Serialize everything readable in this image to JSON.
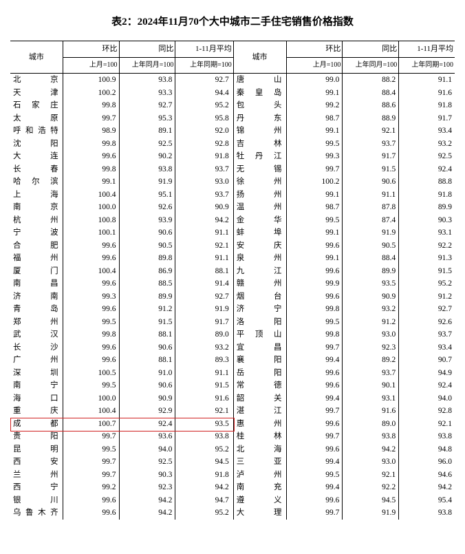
{
  "title": "表2：2024年11月70个大中城市二手住宅销售价格指数",
  "header": {
    "city": "城市",
    "mom": "环比",
    "yoy": "同比",
    "avg": "1-11月平均",
    "mom_sub": "上月=100",
    "yoy_sub": "上年同月=100",
    "avg_sub": "上年同期=100"
  },
  "highlight_left_index": 27,
  "highlight_color": "#d02020",
  "colors": {
    "bg": "#ffffff",
    "text": "#000000",
    "border": "#000000"
  },
  "left": [
    {
      "city": "北京",
      "v": [
        100.9,
        93.8,
        92.7
      ]
    },
    {
      "city": "天津",
      "v": [
        100.2,
        93.3,
        94.4
      ]
    },
    {
      "city": "石家庄",
      "v": [
        99.8,
        92.7,
        95.2
      ]
    },
    {
      "city": "太原",
      "v": [
        99.7,
        95.3,
        95.8
      ]
    },
    {
      "city": "呼和浩特",
      "v": [
        98.9,
        89.1,
        92.0
      ]
    },
    {
      "city": "沈阳",
      "v": [
        99.8,
        92.5,
        92.8
      ]
    },
    {
      "city": "大连",
      "v": [
        99.6,
        90.2,
        91.8
      ]
    },
    {
      "city": "长春",
      "v": [
        99.8,
        93.8,
        93.7
      ]
    },
    {
      "city": "哈尔滨",
      "v": [
        99.1,
        91.9,
        93.0
      ]
    },
    {
      "city": "上海",
      "v": [
        100.4,
        95.1,
        93.7
      ]
    },
    {
      "city": "南京",
      "v": [
        100.0,
        92.6,
        90.9
      ]
    },
    {
      "city": "杭州",
      "v": [
        100.8,
        93.9,
        94.2
      ]
    },
    {
      "city": "宁波",
      "v": [
        100.1,
        90.6,
        91.1
      ]
    },
    {
      "city": "合肥",
      "v": [
        99.6,
        90.5,
        92.1
      ]
    },
    {
      "city": "福州",
      "v": [
        99.6,
        89.8,
        91.1
      ]
    },
    {
      "city": "厦门",
      "v": [
        100.4,
        86.9,
        88.1
      ]
    },
    {
      "city": "南昌",
      "v": [
        99.6,
        88.5,
        91.4
      ]
    },
    {
      "city": "济南",
      "v": [
        99.3,
        89.9,
        92.7
      ]
    },
    {
      "city": "青岛",
      "v": [
        99.6,
        91.2,
        91.9
      ]
    },
    {
      "city": "郑州",
      "v": [
        99.5,
        91.5,
        91.7
      ]
    },
    {
      "city": "武汉",
      "v": [
        99.8,
        88.1,
        89.0
      ]
    },
    {
      "city": "长沙",
      "v": [
        99.6,
        90.6,
        93.2
      ]
    },
    {
      "city": "广州",
      "v": [
        99.6,
        88.1,
        89.3
      ]
    },
    {
      "city": "深圳",
      "v": [
        100.5,
        91.0,
        91.1
      ]
    },
    {
      "city": "南宁",
      "v": [
        99.5,
        90.6,
        91.5
      ]
    },
    {
      "city": "海口",
      "v": [
        100.0,
        90.9,
        91.6
      ]
    },
    {
      "city": "重庆",
      "v": [
        100.4,
        92.9,
        92.1
      ]
    },
    {
      "city": "成都",
      "v": [
        100.7,
        92.4,
        93.5
      ]
    },
    {
      "city": "贵阳",
      "v": [
        99.7,
        93.6,
        93.8
      ]
    },
    {
      "city": "昆明",
      "v": [
        99.5,
        94.0,
        95.2
      ]
    },
    {
      "city": "西安",
      "v": [
        99.7,
        92.5,
        94.5
      ]
    },
    {
      "city": "兰州",
      "v": [
        99.7,
        90.3,
        91.8
      ]
    },
    {
      "city": "西宁",
      "v": [
        99.2,
        92.3,
        94.2
      ]
    },
    {
      "city": "银川",
      "v": [
        99.6,
        94.2,
        94.7
      ]
    },
    {
      "city": "乌鲁木齐",
      "v": [
        99.6,
        94.2,
        95.2
      ]
    }
  ],
  "right": [
    {
      "city": "唐山",
      "v": [
        99.0,
        88.2,
        91.1
      ]
    },
    {
      "city": "秦皇岛",
      "v": [
        99.1,
        88.4,
        91.6
      ]
    },
    {
      "city": "包头",
      "v": [
        99.2,
        88.6,
        91.8
      ]
    },
    {
      "city": "丹东",
      "v": [
        98.7,
        88.9,
        91.7
      ]
    },
    {
      "city": "锦州",
      "v": [
        99.1,
        92.1,
        93.4
      ]
    },
    {
      "city": "吉林",
      "v": [
        99.5,
        93.7,
        93.2
      ]
    },
    {
      "city": "牡丹江",
      "v": [
        99.3,
        91.7,
        92.5
      ]
    },
    {
      "city": "无锡",
      "v": [
        99.7,
        91.5,
        92.4
      ]
    },
    {
      "city": "徐州",
      "v": [
        100.2,
        90.6,
        88.8
      ]
    },
    {
      "city": "扬州",
      "v": [
        99.1,
        91.1,
        91.8
      ]
    },
    {
      "city": "温州",
      "v": [
        98.7,
        87.8,
        89.9
      ]
    },
    {
      "city": "金华",
      "v": [
        99.5,
        87.4,
        90.3
      ]
    },
    {
      "city": "蚌埠",
      "v": [
        99.1,
        91.9,
        93.1
      ]
    },
    {
      "city": "安庆",
      "v": [
        99.6,
        90.5,
        92.2
      ]
    },
    {
      "city": "泉州",
      "v": [
        99.1,
        88.4,
        91.3
      ]
    },
    {
      "city": "九江",
      "v": [
        99.6,
        89.9,
        91.5
      ]
    },
    {
      "city": "赣州",
      "v": [
        99.9,
        93.5,
        95.2
      ]
    },
    {
      "city": "烟台",
      "v": [
        99.6,
        90.9,
        91.2
      ]
    },
    {
      "city": "济宁",
      "v": [
        99.8,
        93.2,
        92.7
      ]
    },
    {
      "city": "洛阳",
      "v": [
        99.5,
        91.2,
        92.6
      ]
    },
    {
      "city": "平顶山",
      "v": [
        99.8,
        93.0,
        93.7
      ]
    },
    {
      "city": "宜昌",
      "v": [
        99.7,
        92.3,
        93.4
      ]
    },
    {
      "city": "襄阳",
      "v": [
        99.4,
        89.2,
        90.7
      ]
    },
    {
      "city": "岳阳",
      "v": [
        99.6,
        93.7,
        94.9
      ]
    },
    {
      "city": "常德",
      "v": [
        99.6,
        90.1,
        92.4
      ]
    },
    {
      "city": "韶关",
      "v": [
        99.4,
        93.1,
        94.0
      ]
    },
    {
      "city": "湛江",
      "v": [
        99.7,
        91.6,
        92.8
      ]
    },
    {
      "city": "惠州",
      "v": [
        99.6,
        89.0,
        92.1
      ]
    },
    {
      "city": "桂林",
      "v": [
        99.7,
        93.8,
        93.8
      ]
    },
    {
      "city": "北海",
      "v": [
        99.6,
        94.2,
        94.8
      ]
    },
    {
      "city": "三亚",
      "v": [
        99.4,
        93.0,
        96.0
      ]
    },
    {
      "city": "泸州",
      "v": [
        99.5,
        92.1,
        94.6
      ]
    },
    {
      "city": "南充",
      "v": [
        99.4,
        92.2,
        94.2
      ]
    },
    {
      "city": "遵义",
      "v": [
        99.6,
        94.5,
        95.4
      ]
    },
    {
      "city": "大理",
      "v": [
        99.7,
        91.9,
        93.8
      ]
    }
  ]
}
